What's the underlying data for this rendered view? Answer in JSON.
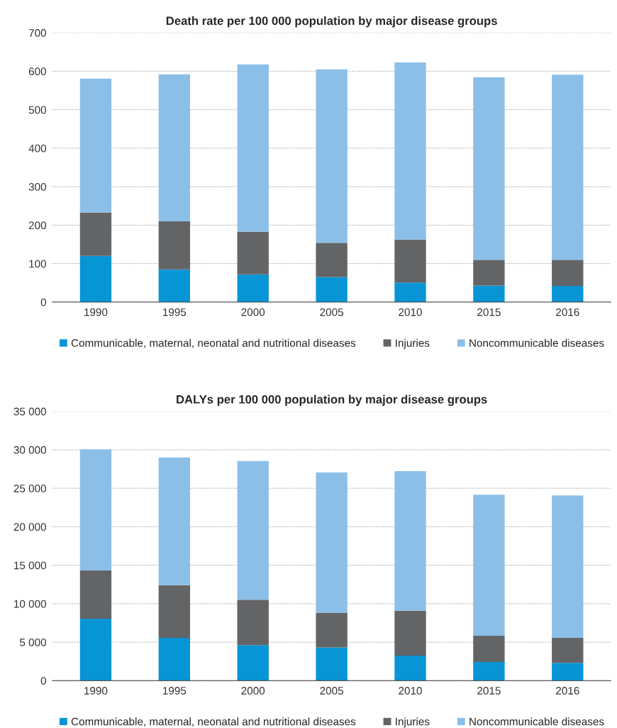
{
  "chart_data": [
    {
      "type": "bar",
      "title": "Death rate per 100 000 population by major disease groups",
      "stacked": true,
      "categories": [
        "1990",
        "1995",
        "2000",
        "2005",
        "2010",
        "2015",
        "2016"
      ],
      "series": [
        {
          "name": "Communicable, maternal, neonatal and nutritional diseases",
          "color": "#0895d6",
          "values": [
            120,
            85,
            72,
            65,
            51,
            43,
            42
          ]
        },
        {
          "name": "Injuries",
          "color": "#636466",
          "values": [
            113,
            125,
            111,
            89,
            112,
            67,
            68
          ]
        },
        {
          "name": "Noncommunicable diseases",
          "color": "#8cbfe8",
          "values": [
            348,
            382,
            435,
            451,
            460,
            474,
            481
          ]
        }
      ],
      "ylim": [
        0,
        700
      ],
      "yticks": [
        0,
        100,
        200,
        300,
        400,
        500,
        600,
        700
      ],
      "grid": "y",
      "legend": "bottom"
    },
    {
      "type": "bar",
      "title": "DALYs per 100 000 population by major disease groups",
      "stacked": true,
      "categories": [
        "1990",
        "1995",
        "2000",
        "2005",
        "2010",
        "2015",
        "2016"
      ],
      "series": [
        {
          "name": "Communicable, maternal, neonatal and nutritional diseases",
          "color": "#0895d6",
          "values": [
            8040,
            5570,
            4620,
            4310,
            3260,
            2420,
            2310
          ]
        },
        {
          "name": "Injuries",
          "color": "#636466",
          "values": [
            6310,
            6830,
            5890,
            4520,
            5830,
            3410,
            3260
          ]
        },
        {
          "name": "Noncommunicable diseases",
          "color": "#8cbfe8",
          "values": [
            15710,
            16600,
            18020,
            18230,
            18130,
            18340,
            18500
          ]
        }
      ],
      "ylim": [
        0,
        35000
      ],
      "yticks": [
        0,
        {
          "value": 5000,
          "label": "5 000"
        },
        {
          "value": 10000,
          "label": "10 000"
        },
        {
          "value": 15000,
          "label": "15 000"
        },
        {
          "value": 20000,
          "label": "20 000"
        },
        {
          "value": 25000,
          "label": "25 000"
        },
        {
          "value": 30000,
          "label": "30 000"
        },
        {
          "value": 35000,
          "label": "35 000"
        }
      ],
      "grid": "y",
      "legend": "bottom"
    }
  ]
}
